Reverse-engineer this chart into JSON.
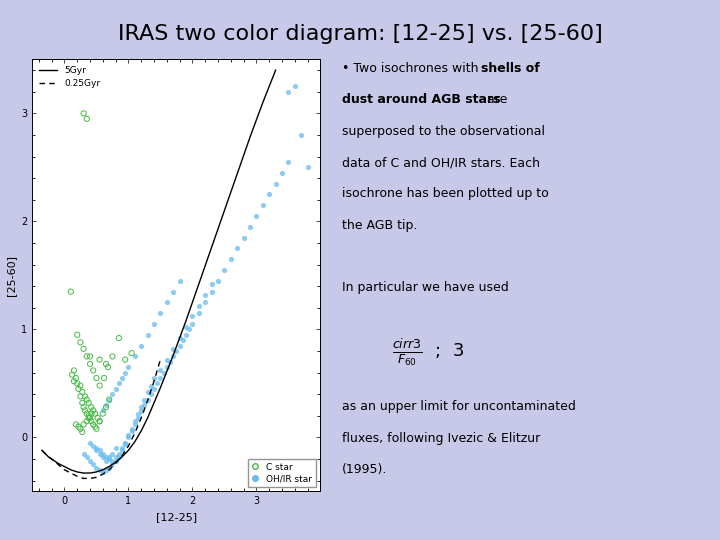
{
  "title": "IRAS two color diagram: [12-25] vs. [25-60]",
  "background_color": "#c8c8e8",
  "plot_bg_color": "#ffffff",
  "xlabel": "[12-25]",
  "ylabel": "[25-60]",
  "xlim": [
    -0.5,
    4.0
  ],
  "ylim": [
    -0.5,
    3.5
  ],
  "xticks": [
    0,
    1,
    2,
    3
  ],
  "yticks": [
    0,
    1,
    2,
    3
  ],
  "c_stars_x": [
    0.1,
    0.15,
    0.18,
    0.2,
    0.22,
    0.25,
    0.28,
    0.3,
    0.32,
    0.35,
    0.38,
    0.4,
    0.42,
    0.45,
    0.48,
    0.5,
    0.55,
    0.6,
    0.65,
    0.7,
    0.25,
    0.28,
    0.32,
    0.35,
    0.38,
    0.42,
    0.45,
    0.48,
    0.52,
    0.55,
    0.18,
    0.22,
    0.25,
    0.28,
    0.3,
    0.35,
    0.38,
    0.42,
    0.12,
    0.15,
    0.55,
    0.62,
    0.68,
    0.75,
    0.85,
    0.95,
    1.05,
    0.2,
    0.25,
    0.3,
    0.35,
    0.4,
    0.45,
    0.5,
    0.3,
    0.35,
    0.4,
    0.55,
    0.65
  ],
  "c_stars_y": [
    1.35,
    0.62,
    0.55,
    0.5,
    0.45,
    0.38,
    0.32,
    0.28,
    0.25,
    0.22,
    0.2,
    0.18,
    0.15,
    0.12,
    0.1,
    0.08,
    0.15,
    0.22,
    0.28,
    0.35,
    0.48,
    0.42,
    0.38,
    0.35,
    0.32,
    0.28,
    0.25,
    0.22,
    0.18,
    0.15,
    0.12,
    0.1,
    0.08,
    0.05,
    0.12,
    0.15,
    0.18,
    0.22,
    0.58,
    0.52,
    0.48,
    0.55,
    0.65,
    0.75,
    0.92,
    0.72,
    0.78,
    0.95,
    0.88,
    0.82,
    0.75,
    0.68,
    0.62,
    0.55,
    3.0,
    2.95,
    0.75,
    0.72,
    0.68
  ],
  "ohir_stars_x": [
    0.3,
    0.35,
    0.4,
    0.45,
    0.5,
    0.55,
    0.6,
    0.65,
    0.7,
    0.75,
    0.8,
    0.85,
    0.9,
    0.95,
    1.0,
    1.05,
    1.1,
    1.15,
    1.2,
    1.25,
    1.3,
    1.35,
    1.4,
    1.45,
    1.5,
    1.55,
    1.6,
    1.65,
    1.7,
    1.75,
    1.8,
    1.85,
    1.9,
    1.95,
    2.0,
    2.1,
    2.2,
    2.3,
    2.4,
    2.5,
    2.6,
    2.7,
    2.8,
    2.9,
    3.0,
    3.1,
    3.2,
    3.3,
    3.4,
    3.5,
    0.5,
    0.55,
    0.6,
    0.65,
    0.7,
    0.75,
    0.8,
    0.85,
    0.9,
    0.95,
    1.0,
    1.05,
    1.1,
    1.15,
    1.2,
    1.25,
    1.3,
    1.35,
    1.4,
    0.4,
    0.45,
    0.5,
    0.55,
    0.6,
    0.65,
    0.7,
    0.75,
    0.8,
    1.5,
    1.6,
    1.7,
    1.8,
    1.9,
    2.0,
    2.1,
    2.2,
    2.3,
    0.6,
    0.65,
    0.7,
    0.75,
    0.8,
    0.85,
    0.9,
    0.95,
    1.0,
    1.1,
    1.2,
    1.3,
    1.4,
    1.5,
    1.6,
    1.7,
    1.8,
    3.5,
    3.6,
    3.7,
    3.8
  ],
  "ohir_stars_y": [
    -0.15,
    -0.18,
    -0.22,
    -0.25,
    -0.28,
    -0.3,
    -0.32,
    -0.3,
    -0.28,
    -0.25,
    -0.22,
    -0.18,
    -0.12,
    -0.06,
    0.0,
    0.06,
    0.12,
    0.18,
    0.24,
    0.3,
    0.35,
    0.4,
    0.45,
    0.5,
    0.55,
    0.6,
    0.65,
    0.7,
    0.75,
    0.8,
    0.85,
    0.9,
    0.95,
    1.0,
    1.05,
    1.15,
    1.25,
    1.35,
    1.45,
    1.55,
    1.65,
    1.75,
    1.85,
    1.95,
    2.05,
    2.15,
    2.25,
    2.35,
    2.45,
    2.55,
    -0.1,
    -0.12,
    -0.15,
    -0.18,
    -0.2,
    -0.22,
    -0.18,
    -0.15,
    -0.1,
    -0.05,
    0.02,
    0.08,
    0.15,
    0.22,
    0.28,
    0.35,
    0.42,
    0.48,
    0.55,
    -0.05,
    -0.08,
    -0.12,
    -0.15,
    -0.18,
    -0.22,
    -0.18,
    -0.15,
    -0.1,
    0.62,
    0.72,
    0.82,
    0.92,
    1.02,
    1.12,
    1.22,
    1.32,
    1.42,
    0.25,
    0.3,
    0.35,
    0.4,
    0.45,
    0.5,
    0.55,
    0.6,
    0.65,
    0.75,
    0.85,
    0.95,
    1.05,
    1.15,
    1.25,
    1.35,
    1.45,
    3.2,
    3.25,
    2.8,
    2.5
  ],
  "iso1_x": [
    -0.35,
    -0.3,
    -0.25,
    -0.2,
    -0.15,
    -0.1,
    0.0,
    0.1,
    0.2,
    0.3,
    0.4,
    0.5,
    0.6,
    0.7,
    0.8,
    0.9,
    1.0,
    1.1,
    1.2,
    1.3,
    1.5,
    1.7,
    1.9,
    2.1,
    2.3,
    2.5,
    2.7,
    2.9,
    3.1,
    3.3
  ],
  "iso1_y": [
    -0.12,
    -0.15,
    -0.18,
    -0.2,
    -0.22,
    -0.24,
    -0.27,
    -0.3,
    -0.32,
    -0.33,
    -0.33,
    -0.32,
    -0.3,
    -0.27,
    -0.23,
    -0.18,
    -0.12,
    -0.04,
    0.06,
    0.18,
    0.46,
    0.76,
    1.08,
    1.42,
    1.76,
    2.1,
    2.44,
    2.78,
    3.1,
    3.4
  ],
  "iso2_x": [
    -0.35,
    -0.3,
    -0.25,
    -0.2,
    -0.15,
    -0.1,
    0.0,
    0.1,
    0.2,
    0.3,
    0.4,
    0.5,
    0.6,
    0.7,
    0.8,
    0.9,
    1.0,
    1.1,
    1.2,
    1.3,
    1.4,
    1.5
  ],
  "iso2_y": [
    -0.12,
    -0.15,
    -0.18,
    -0.2,
    -0.22,
    -0.25,
    -0.3,
    -0.33,
    -0.36,
    -0.38,
    -0.38,
    -0.37,
    -0.34,
    -0.3,
    -0.24,
    -0.17,
    -0.08,
    0.04,
    0.18,
    0.34,
    0.52,
    0.72
  ],
  "c_color": "#44bb44",
  "ohir_color": "#66bbee",
  "iso_color": "#000000",
  "title_fontsize": 16,
  "axis_label_fontsize": 8
}
